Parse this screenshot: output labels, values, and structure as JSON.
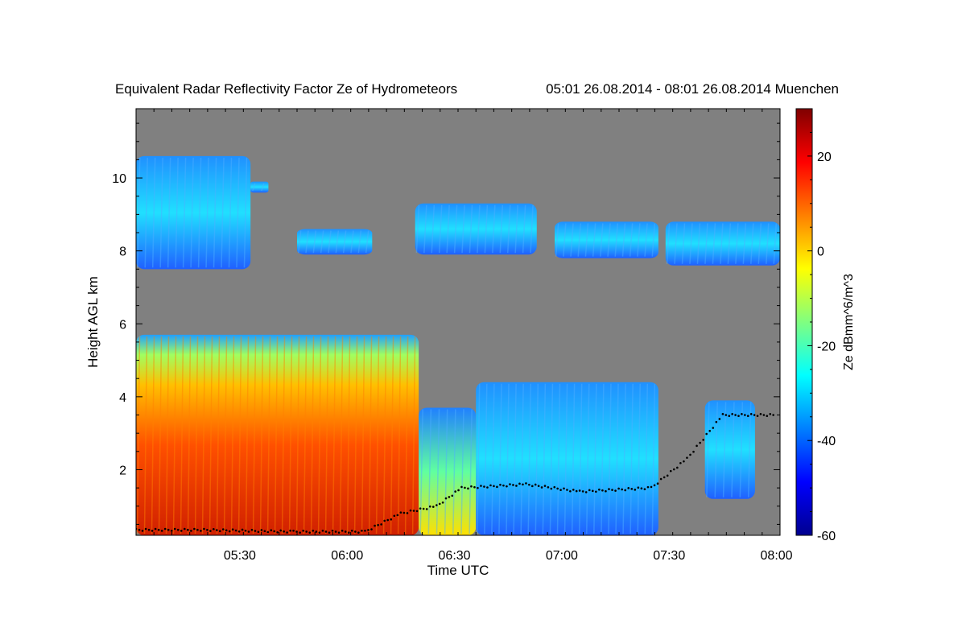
{
  "chart_data": {
    "type": "heatmap",
    "title": "Equivalent Radar Reflectivity Factor Ze of Hydrometeors",
    "subtitle": "05:01 26.08.2014 - 08:01 26.08.2014 Muenchen",
    "xlabel": "Time UTC",
    "ylabel": "Height AGL km",
    "x_time_range": [
      "05:01",
      "08:01"
    ],
    "x_ticks": [
      "05:30",
      "06:00",
      "06:30",
      "07:00",
      "07:30",
      "08:00"
    ],
    "y_range_km": [
      0.2,
      11.9
    ],
    "y_ticks": [
      2,
      4,
      6,
      8,
      10
    ],
    "colorbar": {
      "label": "Ze dBmm^6/m^3",
      "range": [
        -60,
        30
      ],
      "ticks": [
        20,
        0,
        -20,
        -40,
        -60
      ],
      "colormap": "jet"
    },
    "no_data_color": "#808080",
    "legend": "none",
    "grid": false,
    "regions": [
      {
        "t0": "05:01",
        "t1": "05:33",
        "z_bottom_km": 7.5,
        "z_top_km": 10.6,
        "ze_dbz": -30,
        "kind": "upper cloud"
      },
      {
        "t0": "05:33",
        "t1": "05:38",
        "z_bottom_km": 9.6,
        "z_top_km": 9.9,
        "ze_dbz": -28,
        "kind": "upper cloud"
      },
      {
        "t0": "05:46",
        "t1": "06:07",
        "z_bottom_km": 7.9,
        "z_top_km": 8.6,
        "ze_dbz": -35,
        "kind": "upper cloud"
      },
      {
        "t0": "06:19",
        "t1": "06:53",
        "z_bottom_km": 7.9,
        "z_top_km": 9.3,
        "ze_dbz": -22,
        "kind": "upper cloud"
      },
      {
        "t0": "06:58",
        "t1": "07:27",
        "z_bottom_km": 7.8,
        "z_top_km": 8.8,
        "ze_dbz": -25,
        "kind": "upper cloud"
      },
      {
        "t0": "07:29",
        "t1": "08:01",
        "z_bottom_km": 7.6,
        "z_top_km": 8.8,
        "ze_dbz": -28,
        "kind": "upper cloud"
      },
      {
        "t0": "05:01",
        "t1": "06:20",
        "z_bottom_km": 0.2,
        "z_top_km": 5.7,
        "ze_dbz": 10,
        "kind": "precipitation"
      },
      {
        "t0": "06:20",
        "t1": "06:36",
        "z_bottom_km": 0.2,
        "z_top_km": 3.7,
        "ze_dbz": -15,
        "kind": "precipitation"
      },
      {
        "t0": "06:36",
        "t1": "07:27",
        "z_bottom_km": 0.2,
        "z_top_km": 4.4,
        "ze_dbz": -30,
        "kind": "lower cloud"
      },
      {
        "t0": "07:40",
        "t1": "07:54",
        "z_bottom_km": 1.2,
        "z_top_km": 3.9,
        "ze_dbz": -35,
        "kind": "lower cloud"
      }
    ],
    "cloud_base_points": [
      {
        "t": "05:01",
        "z_km": 0.35
      },
      {
        "t": "05:20",
        "z_km": 0.35
      },
      {
        "t": "05:45",
        "z_km": 0.3
      },
      {
        "t": "06:05",
        "z_km": 0.3
      },
      {
        "t": "06:15",
        "z_km": 0.8
      },
      {
        "t": "06:25",
        "z_km": 1.0
      },
      {
        "t": "06:32",
        "z_km": 1.5
      },
      {
        "t": "06:50",
        "z_km": 1.6
      },
      {
        "t": "07:05",
        "z_km": 1.4
      },
      {
        "t": "07:25",
        "z_km": 1.5
      },
      {
        "t": "07:35",
        "z_km": 2.3
      },
      {
        "t": "07:45",
        "z_km": 3.5
      },
      {
        "t": "08:00",
        "z_km": 3.5
      }
    ]
  }
}
